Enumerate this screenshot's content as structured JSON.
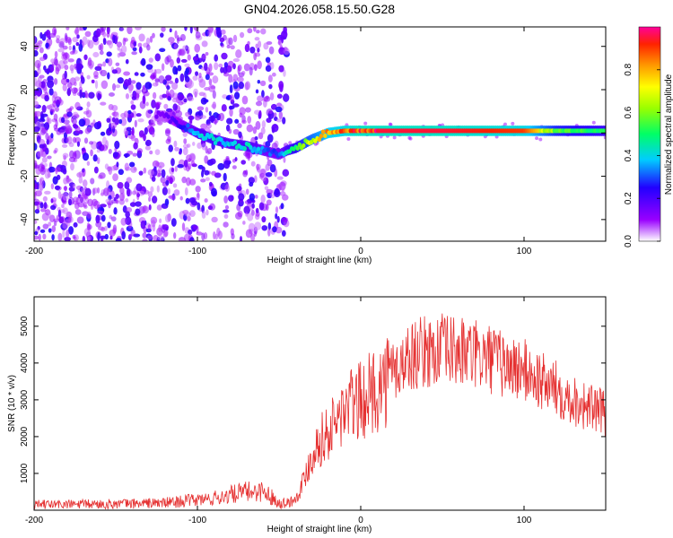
{
  "title": "GN04.2026.058.15.50.G28",
  "chart_data": [
    {
      "type": "heatmap",
      "name": "spectrogram",
      "xlabel": "Height of straight line (km)",
      "ylabel": "Frequency (Hz)",
      "xlim": [
        -200,
        150
      ],
      "ylim": [
        -50,
        49
      ],
      "xticks": [
        -200,
        -100,
        0,
        100
      ],
      "yticks": [
        -40,
        -20,
        0,
        20,
        40
      ],
      "colorbar": {
        "label": "Normalized spectral amplitude",
        "range": [
          0,
          1
        ],
        "ticks": [
          "0.0",
          "0.2",
          "0.4",
          "0.6",
          "0.8"
        ],
        "tick_values": [
          0,
          0.2,
          0.4,
          0.6,
          0.8
        ]
      },
      "ridge": {
        "description": "dominant frequency track",
        "x": [
          -120,
          -110,
          -100,
          -90,
          -80,
          -70,
          -60,
          -50,
          -45,
          -40,
          -30,
          -20,
          -10,
          0,
          10,
          50,
          100,
          120,
          150
        ],
        "y": [
          8,
          4,
          0,
          -3,
          -5,
          -6,
          -8,
          -10,
          -8,
          -7,
          -3,
          0,
          1,
          1,
          1,
          1,
          1,
          1,
          1
        ],
        "amplitude": [
          0.15,
          0.25,
          0.4,
          0.45,
          0.4,
          0.45,
          0.35,
          0.3,
          0.45,
          0.55,
          0.7,
          0.85,
          0.9,
          0.95,
          0.95,
          0.95,
          0.9,
          0.6,
          0.5
        ]
      }
    },
    {
      "type": "line",
      "name": "snr",
      "xlabel": "Height of straight line (km)",
      "ylabel": "SNR (10 * v/v)",
      "xlim": [
        -200,
        150
      ],
      "ylim": [
        0,
        5800
      ],
      "xticks": [
        -200,
        -100,
        0,
        100
      ],
      "yticks": [
        1000,
        2000,
        3000,
        4000,
        5000
      ],
      "color": "#e53030",
      "series": [
        {
          "name": "SNR",
          "x": [
            -200,
            -150,
            -120,
            -100,
            -90,
            -80,
            -70,
            -60,
            -55,
            -50,
            -45,
            -40,
            -35,
            -30,
            -25,
            -20,
            -15,
            -10,
            -5,
            0,
            10,
            20,
            30,
            40,
            50,
            60,
            70,
            80,
            90,
            100,
            110,
            120,
            130,
            140,
            150
          ],
          "y": [
            150,
            170,
            200,
            280,
            320,
            420,
            500,
            520,
            380,
            200,
            200,
            300,
            800,
            1500,
            1900,
            2100,
            2400,
            2700,
            2900,
            2950,
            3300,
            3700,
            4200,
            4300,
            4350,
            4300,
            4200,
            4100,
            3900,
            3800,
            3500,
            3300,
            3000,
            2800,
            2600
          ]
        }
      ]
    }
  ]
}
